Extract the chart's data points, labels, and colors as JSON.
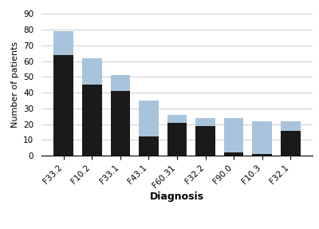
{
  "categories": [
    "F33.2",
    "F10.2",
    "F33.1",
    "F43.1",
    "F60.31",
    "F32.2",
    "F90.0",
    "F10.3",
    "F32.1"
  ],
  "main_diagnosis": [
    64,
    45,
    41,
    12,
    21,
    19,
    2,
    1,
    16
  ],
  "secondary_diagnosis": [
    15,
    17,
    10,
    23,
    5,
    5,
    22,
    21,
    6
  ],
  "color_main": "#1a1a1a",
  "color_secondary": "#a8c4dc",
  "ylabel": "Number of patients",
  "xlabel": "Diagnosis",
  "ylim": [
    0,
    90
  ],
  "yticks": [
    0,
    10,
    20,
    30,
    40,
    50,
    60,
    70,
    80,
    90
  ],
  "bar_width": 0.7,
  "figsize": [
    4.0,
    2.87
  ],
  "dpi": 100
}
